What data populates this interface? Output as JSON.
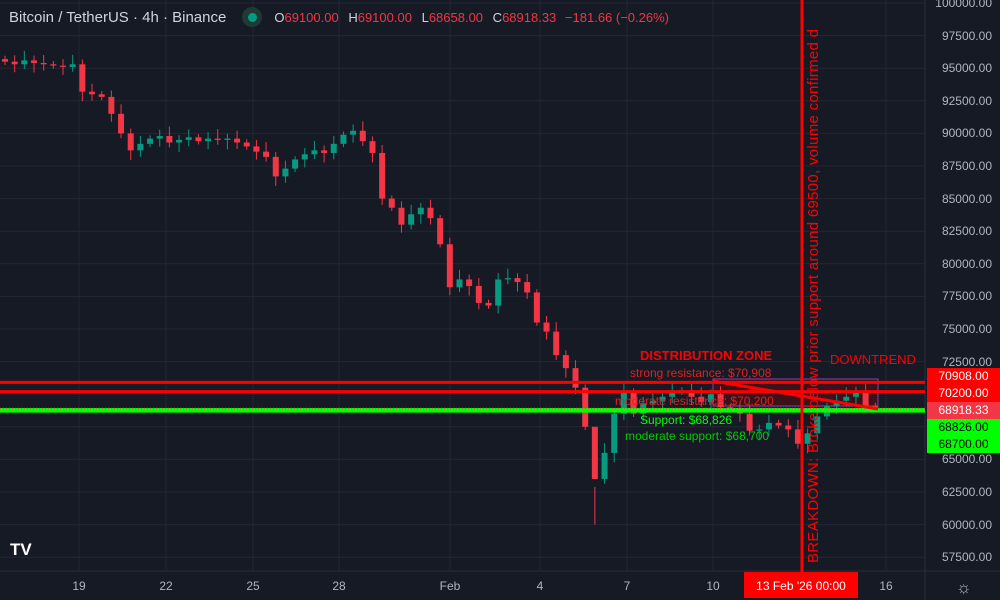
{
  "header": {
    "symbol": "Bitcoin / TetherUS · 4h · Binance",
    "open_label": "O",
    "open": "69100.00",
    "high_label": "H",
    "high": "69100.00",
    "low_label": "L",
    "low": "68658.00",
    "close_label": "C",
    "close": "68918.33",
    "change": "−181.66 (−0.26%)",
    "status_icon": "market-open-dot"
  },
  "y_axis": {
    "ticks": [
      "100000.00",
      "97500.00",
      "95000.00",
      "92500.00",
      "90000.00",
      "87500.00",
      "85000.00",
      "82500.00",
      "80000.00",
      "77500.00",
      "75000.00",
      "72500.00",
      "65000.00",
      "62500.00",
      "60000.00",
      "57500.00"
    ]
  },
  "price_labels": [
    {
      "value": "70908.00",
      "bg": "#ff0000",
      "fg": "#ffffff"
    },
    {
      "value": "70200.00",
      "bg": "#ff0000",
      "fg": "#ffffff"
    },
    {
      "value": "68918.33",
      "bg": "#f23645",
      "fg": "#ffffff"
    },
    {
      "value": "68826.00",
      "bg": "#00ff00",
      "fg": "#000000"
    },
    {
      "value": "68700.00",
      "bg": "#00ff00",
      "fg": "#000000"
    }
  ],
  "x_axis": {
    "ticks": [
      "19",
      "22",
      "25",
      "28",
      "Feb",
      "4",
      "7",
      "10",
      "16"
    ],
    "crosshair_label": "13 Feb '26   00:00"
  },
  "annotations": {
    "zone": "DISTRIBUTION ZONE",
    "trend": "DOWNTREND",
    "strong_resistance": "strong resistance: $70,908",
    "moderate_resistance": "moderate resistance: $70,200",
    "support": "Support: $68,826",
    "moderate_support": "moderate support: $68,700",
    "breakdown": "BREAKDOWN: Broke below prior support around 69500, volume confirmed d"
  },
  "colors": {
    "up": "#089981",
    "down": "#f23645",
    "resistance": "#ff0000",
    "support": "#00ff00",
    "background": "#161a25"
  },
  "logo": "TV",
  "chart_data": {
    "type": "candlestick",
    "ylim": [
      57500,
      100000
    ],
    "levels": {
      "resistance": [
        70908,
        70200
      ],
      "support": [
        68826,
        68700
      ],
      "last": 68918.33
    },
    "closes": [
      95500,
      95300,
      95600,
      95400,
      95300,
      95200,
      95100,
      95300,
      93200,
      93000,
      92800,
      91500,
      90000,
      88700,
      89200,
      89600,
      89800,
      89300,
      89500,
      89700,
      89400,
      89600,
      89500,
      89600,
      89300,
      89000,
      88600,
      88200,
      86700,
      87300,
      88000,
      88400,
      88700,
      88500,
      89200,
      89900,
      90200,
      89400,
      88500,
      85000,
      84300,
      83000,
      83800,
      84300,
      83500,
      81500,
      78200,
      78800,
      78300,
      77000,
      76800,
      78800,
      78900,
      78600,
      77800,
      75500,
      74800,
      73000,
      72000,
      70500,
      67500,
      63500,
      65500,
      68500,
      70200,
      68500,
      69300,
      69500,
      69800,
      70200,
      70300,
      69800,
      69400,
      70000,
      69000,
      68800,
      68500,
      67200,
      67300,
      67800,
      67600,
      67300,
      66200,
      67000,
      68300,
      69100,
      69500,
      69800,
      70200,
      69100,
      68918.33
    ]
  }
}
